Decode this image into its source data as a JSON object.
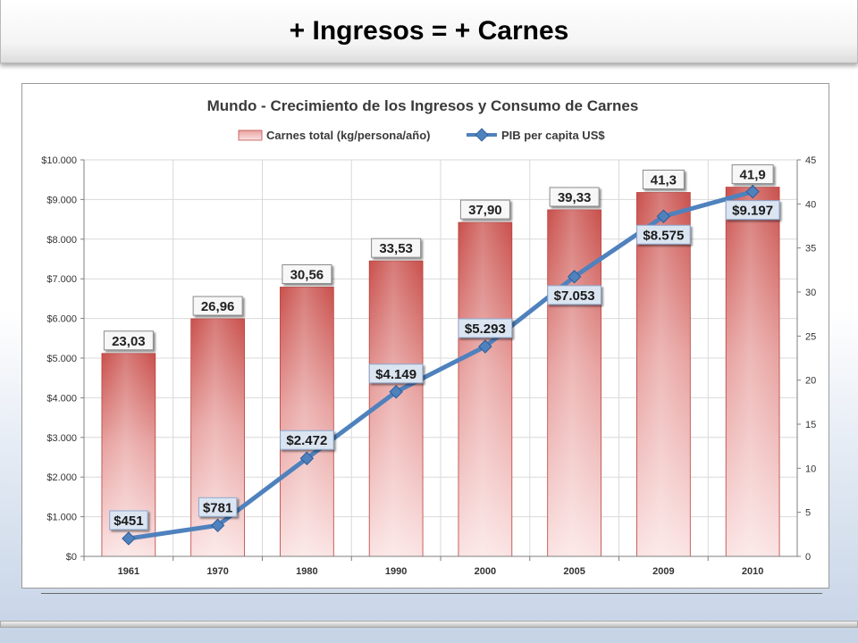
{
  "slide": {
    "title": "+ Ingresos = + Carnes"
  },
  "chart_data": {
    "type": "bar",
    "title": "Mundo - Crecimiento de los Ingresos y Consumo de Carnes",
    "categories": [
      "1961",
      "1970",
      "1980",
      "1990",
      "2000",
      "2005",
      "2009",
      "2010"
    ],
    "series": [
      {
        "name": "Carnes total (kg/persona/año)",
        "type": "bar",
        "axis": "right",
        "values": [
          23.03,
          26.96,
          30.56,
          33.53,
          37.9,
          39.33,
          41.3,
          41.9
        ],
        "labels": [
          "23,03",
          "26,96",
          "30,56",
          "33,53",
          "37,90",
          "39,33",
          "41,3",
          "41,9"
        ],
        "color": "#c0504d"
      },
      {
        "name": "PIB per capita US$",
        "type": "line",
        "axis": "left",
        "values": [
          451,
          781,
          2472,
          4149,
          5293,
          7053,
          8575,
          9197
        ],
        "labels": [
          "$451",
          "$781",
          "$2.472",
          "$4.149",
          "$5.293",
          "$7.053",
          "$8.575",
          "$9.197"
        ],
        "color": "#4f81bd"
      }
    ],
    "left_axis": {
      "min": 0,
      "max": 10000,
      "ticks": [
        "$0",
        "$1.000",
        "$2.000",
        "$3.000",
        "$4.000",
        "$5.000",
        "$6.000",
        "$7.000",
        "$8.000",
        "$9.000",
        "$10.000"
      ]
    },
    "right_axis": {
      "min": 0,
      "max": 45,
      "ticks": [
        "0",
        "5",
        "10",
        "15",
        "20",
        "25",
        "30",
        "35",
        "40",
        "45"
      ]
    },
    "grid": true,
    "legend_position": "top"
  }
}
